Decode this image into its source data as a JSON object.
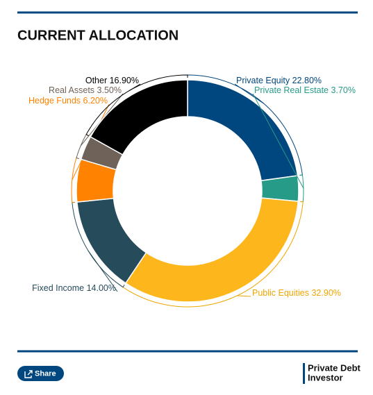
{
  "chart_data": {
    "type": "donut",
    "title": "CURRENT ALLOCATION",
    "categories": [
      "Private Equity",
      "Private Real Estate",
      "Public Equities",
      "Fixed Income",
      "Hedge Funds",
      "Real Assets",
      "Other"
    ],
    "values": [
      22.8,
      3.7,
      32.9,
      14.0,
      6.2,
      3.5,
      16.9
    ],
    "value_labels": [
      "22.80%",
      "3.70%",
      "32.90%",
      "14.00%",
      "6.20%",
      "3.50%",
      "16.90%"
    ],
    "colors": [
      "#00467f",
      "#269b88",
      "#fdb71c",
      "#264b5b",
      "#ff8200",
      "#6e6259",
      "#000000"
    ]
  },
  "share_button": "Share",
  "brand": [
    "Private Debt",
    "Investor"
  ]
}
